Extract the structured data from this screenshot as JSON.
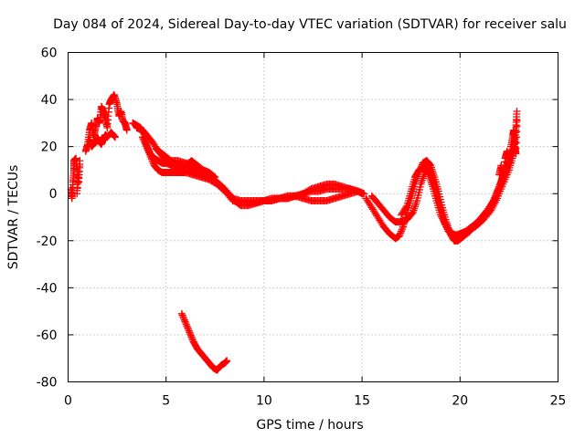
{
  "chart_data": {
    "type": "scatter",
    "title": "Day 084 of 2024, Sidereal Day-to-day VTEC variation (SDTVAR) for receiver salu",
    "xlabel": "GPS time / hours",
    "ylabel": "SDTVAR / TECUs",
    "xlim": [
      0,
      25
    ],
    "ylim": [
      -80,
      60
    ],
    "xticks": [
      0,
      5,
      10,
      15,
      20,
      25
    ],
    "yticks": [
      -80,
      -60,
      -40,
      -20,
      0,
      20,
      40,
      60
    ],
    "grid": true,
    "marker": "+",
    "color": "#ff0000",
    "series": [
      {
        "name": "SDTVAR",
        "segments": [
          [
            [
              0.15,
              2
            ],
            [
              0.2,
              -2
            ],
            [
              0.25,
              5
            ],
            [
              0.3,
              10
            ],
            [
              0.3,
              14
            ],
            [
              0.4,
              15
            ],
            [
              0.5,
              8
            ],
            [
              0.45,
              0
            ],
            [
              0.6,
              14
            ],
            [
              0.55,
              5
            ]
          ],
          [
            [
              0.9,
              18
            ],
            [
              1.0,
              21
            ],
            [
              1.1,
              27
            ],
            [
              1.2,
              30
            ],
            [
              1.3,
              24
            ],
            [
              1.4,
              28
            ],
            [
              1.5,
              32
            ],
            [
              1.6,
              30
            ],
            [
              1.7,
              37
            ],
            [
              1.8,
              35
            ],
            [
              1.9,
              32
            ],
            [
              2.0,
              28
            ],
            [
              2.1,
              38
            ],
            [
              2.2,
              40
            ],
            [
              2.35,
              42
            ],
            [
              2.5,
              38
            ],
            [
              2.6,
              33
            ],
            [
              2.7,
              35
            ],
            [
              2.8,
              31
            ],
            [
              2.9,
              30
            ],
            [
              3.0,
              27
            ]
          ],
          [
            [
              1.1,
              23
            ],
            [
              1.2,
              20
            ],
            [
              1.3,
              21
            ],
            [
              1.4,
              22
            ],
            [
              1.5,
              24
            ],
            [
              1.6,
              22
            ],
            [
              1.7,
              21
            ],
            [
              1.8,
              23
            ],
            [
              1.9,
              25
            ],
            [
              2.0,
              24
            ],
            [
              2.2,
              26
            ],
            [
              2.4,
              24
            ]
          ],
          [
            [
              3.3,
              30
            ],
            [
              3.5,
              29
            ],
            [
              3.7,
              28
            ],
            [
              3.9,
              25
            ],
            [
              4.0,
              21
            ],
            [
              4.2,
              17
            ],
            [
              4.4,
              15
            ],
            [
              4.6,
              14
            ],
            [
              4.8,
              13
            ],
            [
              5.0,
              13
            ],
            [
              5.3,
              12
            ],
            [
              5.6,
              12
            ],
            [
              6.0,
              11
            ],
            [
              6.3,
              10
            ],
            [
              6.6,
              9
            ],
            [
              7.0,
              8
            ],
            [
              7.4,
              6
            ],
            [
              7.8,
              3
            ],
            [
              8.2,
              0
            ],
            [
              8.5,
              -3
            ],
            [
              8.8,
              -5
            ],
            [
              9.2,
              -5
            ],
            [
              9.6,
              -4
            ],
            [
              10.0,
              -3
            ],
            [
              10.4,
              -3
            ],
            [
              10.8,
              -2
            ],
            [
              11.2,
              -2
            ],
            [
              11.6,
              -1
            ],
            [
              12.0,
              0
            ],
            [
              12.4,
              1
            ],
            [
              12.8,
              1
            ],
            [
              13.2,
              2
            ],
            [
              13.6,
              2
            ],
            [
              14.0,
              2
            ],
            [
              14.4,
              2
            ],
            [
              14.8,
              1
            ],
            [
              15.0,
              0
            ]
          ],
          [
            [
              3.5,
              28
            ],
            [
              3.8,
              27
            ],
            [
              4.0,
              25
            ],
            [
              4.3,
              22
            ],
            [
              4.6,
              18
            ],
            [
              4.9,
              15
            ],
            [
              5.2,
              14
            ],
            [
              5.6,
              14
            ],
            [
              6.0,
              13
            ],
            [
              6.4,
              12
            ],
            [
              6.8,
              10
            ],
            [
              7.2,
              8
            ],
            [
              7.6,
              5
            ],
            [
              8.0,
              2
            ],
            [
              8.4,
              -2
            ],
            [
              8.8,
              -3
            ],
            [
              9.2,
              -3
            ],
            [
              9.6,
              -3
            ],
            [
              10.0,
              -3
            ],
            [
              10.4,
              -2
            ],
            [
              10.8,
              -2
            ],
            [
              11.2,
              -1
            ],
            [
              11.6,
              -1
            ],
            [
              12.0,
              -2
            ],
            [
              12.4,
              -3
            ],
            [
              12.8,
              -3
            ],
            [
              13.2,
              -3
            ],
            [
              13.6,
              -2
            ],
            [
              14.0,
              -1
            ],
            [
              14.4,
              0
            ],
            [
              14.8,
              1
            ],
            [
              15.1,
              0
            ]
          ],
          [
            [
              3.8,
              24
            ],
            [
              4.0,
              20
            ],
            [
              4.2,
              16
            ],
            [
              4.4,
              12
            ],
            [
              4.6,
              10
            ],
            [
              4.8,
              9
            ],
            [
              5.1,
              9
            ],
            [
              5.4,
              9
            ],
            [
              5.7,
              9
            ],
            [
              6.0,
              9
            ],
            [
              6.4,
              8
            ],
            [
              6.8,
              7
            ],
            [
              7.2,
              6
            ],
            [
              7.6,
              4
            ],
            [
              8.0,
              1
            ],
            [
              8.4,
              -3
            ],
            [
              8.8,
              -4
            ],
            [
              9.2,
              -4
            ],
            [
              9.6,
              -4
            ],
            [
              10.0,
              -3
            ],
            [
              10.4,
              -3
            ],
            [
              10.8,
              -2
            ],
            [
              11.2,
              -2
            ],
            [
              11.6,
              -1
            ],
            [
              12.0,
              0
            ],
            [
              12.4,
              2
            ],
            [
              12.8,
              3
            ],
            [
              13.2,
              4
            ],
            [
              13.6,
              4
            ],
            [
              14.0,
              3
            ],
            [
              14.4,
              2
            ],
            [
              14.8,
              1
            ]
          ],
          [
            [
              4.5,
              19
            ],
            [
              4.8,
              17
            ],
            [
              5.1,
              15
            ],
            [
              5.4,
              13
            ],
            [
              5.7,
              11
            ],
            [
              6.0,
              12
            ],
            [
              6.3,
              14
            ],
            [
              6.6,
              12
            ],
            [
              6.9,
              10
            ],
            [
              7.2,
              9
            ],
            [
              7.5,
              7
            ]
          ],
          [
            [
              15.5,
              -1
            ],
            [
              15.8,
              -4
            ],
            [
              16.1,
              -7
            ],
            [
              16.4,
              -10
            ],
            [
              16.7,
              -12
            ],
            [
              17.0,
              -12
            ],
            [
              17.3,
              -11
            ],
            [
              17.6,
              -8
            ],
            [
              17.8,
              -3
            ],
            [
              18.0,
              4
            ],
            [
              18.2,
              9
            ],
            [
              18.4,
              11
            ],
            [
              18.6,
              7
            ],
            [
              18.8,
              1
            ],
            [
              19.0,
              -6
            ],
            [
              19.2,
              -12
            ],
            [
              19.4,
              -16
            ],
            [
              19.7,
              -18
            ],
            [
              20.0,
              -17
            ],
            [
              20.3,
              -16
            ],
            [
              20.6,
              -14
            ],
            [
              20.9,
              -12
            ],
            [
              21.2,
              -9
            ],
            [
              21.5,
              -6
            ],
            [
              21.8,
              -2
            ],
            [
              22.0,
              3
            ],
            [
              22.2,
              8
            ],
            [
              22.4,
              13
            ]
          ],
          [
            [
              15.2,
              -2
            ],
            [
              15.5,
              -6
            ],
            [
              15.8,
              -10
            ],
            [
              16.1,
              -14
            ],
            [
              16.4,
              -17
            ],
            [
              16.7,
              -19
            ],
            [
              16.9,
              -18
            ],
            [
              17.1,
              -14
            ],
            [
              17.3,
              -8
            ],
            [
              17.5,
              -2
            ],
            [
              17.7,
              4
            ],
            [
              17.9,
              9
            ],
            [
              18.1,
              13
            ],
            [
              18.3,
              14
            ],
            [
              18.5,
              12
            ],
            [
              18.7,
              7
            ],
            [
              18.9,
              1
            ],
            [
              19.1,
              -6
            ],
            [
              19.3,
              -12
            ],
            [
              19.5,
              -17
            ],
            [
              19.7,
              -20
            ],
            [
              19.9,
              -20
            ],
            [
              20.2,
              -18
            ],
            [
              20.5,
              -16
            ],
            [
              20.8,
              -13
            ],
            [
              21.1,
              -10
            ],
            [
              21.4,
              -7
            ],
            [
              21.7,
              -3
            ],
            [
              21.9,
              1
            ],
            [
              22.1,
              5
            ],
            [
              22.3,
              10
            ],
            [
              22.5,
              14
            ],
            [
              22.7,
              19
            ],
            [
              22.8,
              24
            ]
          ],
          [
            [
              17.0,
              -9
            ],
            [
              17.3,
              -5
            ],
            [
              17.5,
              1
            ],
            [
              17.7,
              7
            ],
            [
              17.9,
              10
            ],
            [
              18.2,
              12
            ],
            [
              18.4,
              8
            ],
            [
              18.6,
              3
            ],
            [
              18.8,
              -3
            ],
            [
              19.0,
              -9
            ],
            [
              19.3,
              -14
            ],
            [
              19.6,
              -17
            ],
            [
              20.0,
              -18
            ],
            [
              20.4,
              -16
            ],
            [
              20.8,
              -14
            ],
            [
              21.2,
              -11
            ],
            [
              21.6,
              -7
            ],
            [
              21.9,
              -2
            ],
            [
              22.2,
              4
            ],
            [
              22.5,
              10
            ],
            [
              22.7,
              16
            ],
            [
              22.8,
              22
            ],
            [
              22.85,
              28
            ],
            [
              22.9,
              35
            ]
          ],
          [
            [
              22.0,
              8
            ],
            [
              22.1,
              12
            ],
            [
              22.2,
              6
            ],
            [
              22.3,
              15
            ],
            [
              22.4,
              18
            ],
            [
              22.5,
              12
            ],
            [
              22.6,
              20
            ],
            [
              22.7,
              25
            ],
            [
              22.75,
              27
            ],
            [
              22.8,
              20
            ],
            [
              22.85,
              17
            ],
            [
              22.9,
              31
            ]
          ],
          [
            [
              5.8,
              -51
            ],
            [
              6.0,
              -55
            ],
            [
              6.2,
              -59
            ],
            [
              6.4,
              -63
            ],
            [
              6.6,
              -66
            ],
            [
              6.8,
              -68
            ],
            [
              7.0,
              -70
            ],
            [
              7.2,
              -72
            ],
            [
              7.4,
              -74
            ],
            [
              7.6,
              -75
            ],
            [
              7.8,
              -73
            ],
            [
              8.0,
              -72
            ],
            [
              8.1,
              -71
            ]
          ]
        ]
      }
    ]
  }
}
